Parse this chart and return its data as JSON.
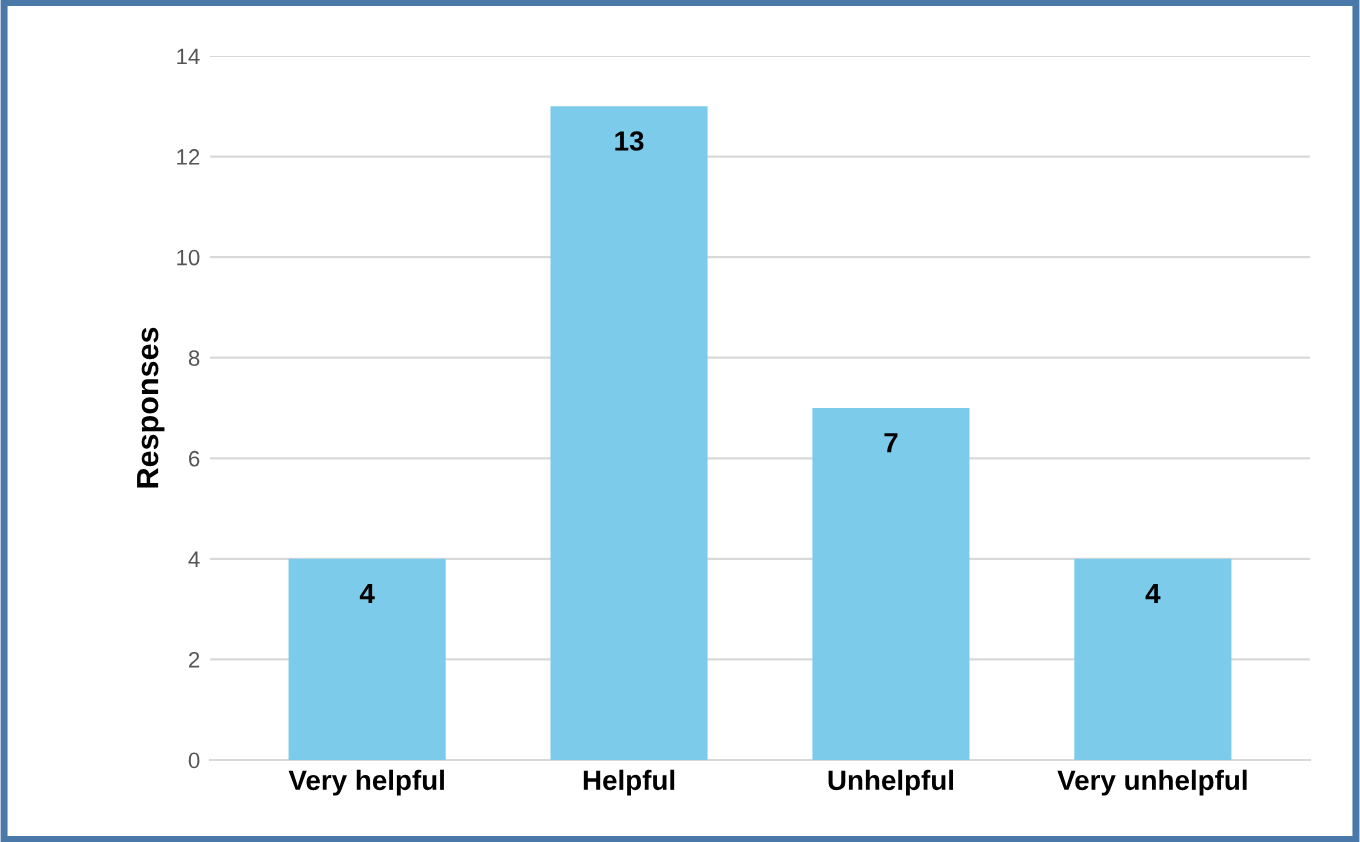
{
  "chart_data": {
    "type": "bar",
    "ylabel": "Responses",
    "categories": [
      "Very helpful",
      "Helpful",
      "Unhelpful",
      "Very unhelpful"
    ],
    "values": [
      4,
      13,
      7,
      4
    ],
    "color": "#7dcbea",
    "ylim": [
      0,
      14
    ],
    "yticks": [
      0,
      2,
      4,
      6,
      8,
      10,
      12,
      14
    ],
    "grid": "y",
    "data_labels": true
  }
}
